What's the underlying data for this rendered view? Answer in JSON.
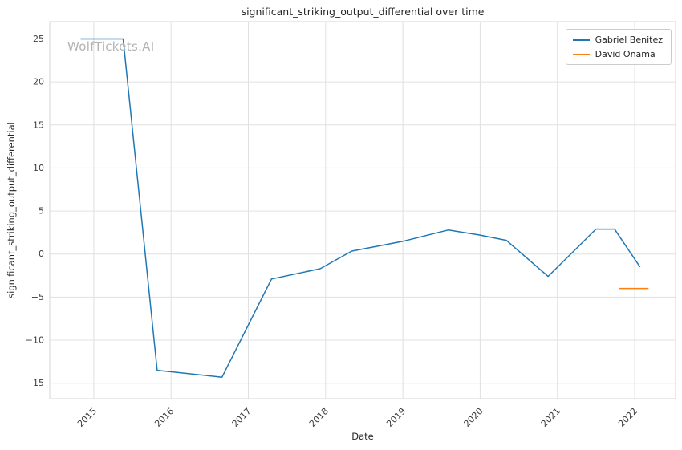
{
  "watermark": "WolfTickets.AI",
  "chart_data": {
    "type": "line",
    "title": "significant_striking_output_differential over time",
    "xlabel": "Date",
    "ylabel": "significant_striking_output_differential",
    "grid": true,
    "legend_position": "upper right",
    "xlim": [
      2014.43,
      2022.53
    ],
    "ylim": [
      -16.8,
      27.0
    ],
    "x_tick_values": [
      2015,
      2016,
      2017,
      2018,
      2019,
      2020,
      2021,
      2022
    ],
    "x_tick_labels": [
      "2015",
      "2016",
      "2017",
      "2018",
      "2019",
      "2020",
      "2021",
      "2022"
    ],
    "y_tick_values": [
      -15,
      -10,
      -5,
      0,
      5,
      10,
      15,
      20,
      25
    ],
    "y_tick_labels": [
      "−15",
      "−10",
      "−5",
      "0",
      "5",
      "10",
      "15",
      "20",
      "25"
    ],
    "series": [
      {
        "name": "Gabriel Benitez",
        "color": "#1f77b4",
        "points": [
          [
            2014.83,
            25.0
          ],
          [
            2015.38,
            25.0
          ],
          [
            2015.82,
            -13.5
          ],
          [
            2016.66,
            -14.3
          ],
          [
            2017.3,
            -2.9
          ],
          [
            2017.93,
            -1.7
          ],
          [
            2018.34,
            0.35
          ],
          [
            2019.01,
            1.5
          ],
          [
            2019.59,
            2.8
          ],
          [
            2020.0,
            2.2
          ],
          [
            2020.34,
            1.6
          ],
          [
            2020.88,
            -2.6
          ],
          [
            2021.5,
            2.9
          ],
          [
            2021.74,
            2.9
          ],
          [
            2022.07,
            -1.5
          ]
        ]
      },
      {
        "name": "David Onama",
        "color": "#ff7f0e",
        "points": [
          [
            2021.8,
            -4.0
          ],
          [
            2022.18,
            -4.0
          ]
        ]
      }
    ]
  }
}
